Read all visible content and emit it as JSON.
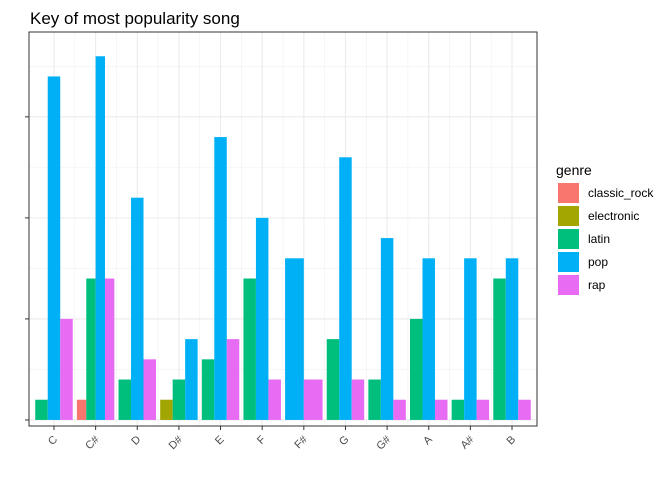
{
  "chart_data": {
    "type": "bar",
    "title": "Key of most popularity song",
    "xlabel": "",
    "ylabel": "",
    "categories": [
      "C",
      "C#",
      "D",
      "D#",
      "E",
      "F",
      "F#",
      "G",
      "G#",
      "A",
      "A#",
      "B"
    ],
    "ylim": [
      -0.3,
      19.2
    ],
    "grid": true,
    "legend_title": "genre",
    "legend_position": "right",
    "series": [
      {
        "name": "classic_rock",
        "color": "#F8766D",
        "values": [
          null,
          1,
          null,
          null,
          null,
          null,
          null,
          null,
          null,
          null,
          null,
          null
        ]
      },
      {
        "name": "electronic",
        "color": "#A3A500",
        "values": [
          null,
          null,
          null,
          1,
          null,
          null,
          null,
          null,
          null,
          null,
          null,
          null
        ]
      },
      {
        "name": "latin",
        "color": "#00BF7D",
        "values": [
          1,
          7,
          2,
          2,
          3,
          7,
          null,
          4,
          2,
          5,
          1,
          7
        ]
      },
      {
        "name": "pop",
        "color": "#00B0F6",
        "values": [
          17,
          18,
          11,
          4,
          14,
          10,
          8,
          13,
          9,
          8,
          8,
          8
        ]
      },
      {
        "name": "rap",
        "color": "#E76BF3",
        "values": [
          5,
          7,
          3,
          null,
          4,
          2,
          2,
          2,
          1,
          1,
          1,
          1
        ]
      }
    ]
  }
}
